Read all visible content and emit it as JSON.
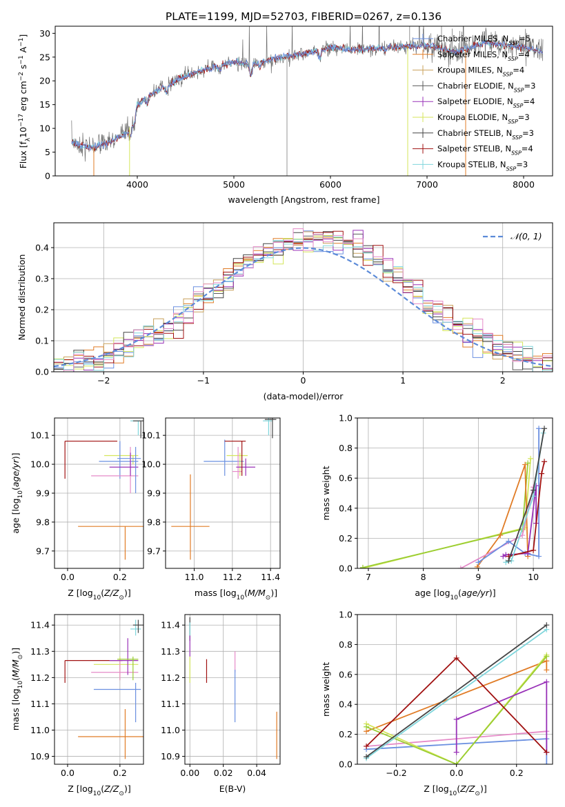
{
  "title": "PLATE=1199, MJD=52703, FIBERID=0267, z=0.136",
  "colors": {
    "chabrier_miles": "#6a8fe0",
    "salpeter_miles": "#e07b25",
    "kroupa_miles": "#c8a05a",
    "chabrier_elodie": "#5a5a5a",
    "salpeter_elodie": "#9932b8",
    "kroupa_elodie": "#d4e65a",
    "chabrier_stelib": "#444444",
    "salpeter_stelib": "#a01010",
    "kroupa_stelib": "#7fd6dc",
    "pink": "#e58ac8",
    "green": "#9acd32"
  },
  "chart_data": [
    {
      "id": "spectrum",
      "type": "line",
      "xlabel": "wavelength [Angstrom, rest frame]",
      "ylabel": "Flux [f",
      "xlim": [
        3150,
        8300
      ],
      "ylim": [
        0,
        31.5
      ],
      "xticks": [
        4000,
        5000,
        6000,
        7000,
        8000
      ],
      "yticks": [
        0,
        5,
        10,
        15,
        20,
        25,
        30
      ],
      "legend_position": "right",
      "legend": [
        {
          "name": "Chabrier MILES, N",
          "sub": "SSP",
          "val": "=5",
          "color": "#6a8fe0"
        },
        {
          "name": "Salpeter MILES, N",
          "sub": "SSP",
          "val": "=4",
          "color": "#e07b25"
        },
        {
          "name": "Kroupa MILES, N",
          "sub": "SSP",
          "val": "=4",
          "color": "#c8a05a"
        },
        {
          "name": "Chabrier ELODIE, N",
          "sub": "SSP",
          "val": "=3",
          "color": "#5a5a5a"
        },
        {
          "name": "Salpeter ELODIE, N",
          "sub": "SSP",
          "val": "=4",
          "color": "#9932b8"
        },
        {
          "name": "Kroupa ELODIE, N",
          "sub": "SSP",
          "val": "=3",
          "color": "#d4e65a"
        },
        {
          "name": "Chabrier STELIB, N",
          "sub": "SSP",
          "val": "=3",
          "color": "#444444"
        },
        {
          "name": "Salpeter STELIB, N",
          "sub": "SSP",
          "val": "=4",
          "color": "#a01010"
        },
        {
          "name": "Kroupa STELIB, N",
          "sub": "SSP",
          "val": "=3",
          "color": "#7fd6dc"
        }
      ],
      "continuum_x": [
        3320,
        3500,
        3700,
        3900,
        4000,
        4200,
        4500,
        4800,
        5000,
        5200,
        5500,
        5800,
        6000,
        6300,
        6600,
        7000,
        7300,
        7600,
        8000,
        8200
      ],
      "continuum_y": [
        7,
        6,
        7,
        9,
        15,
        18,
        21,
        23,
        24,
        23.5,
        25,
        26,
        27,
        26.5,
        27,
        27.5,
        26,
        28,
        27,
        26
      ]
    },
    {
      "id": "residuals",
      "type": "histogram",
      "xlabel": "(data-model)/error",
      "ylabel": "Normed distribution",
      "xlim": [
        -2.5,
        2.5
      ],
      "ylim": [
        0,
        0.48
      ],
      "xticks": [
        -2,
        -1,
        0,
        1,
        2
      ],
      "yticks": [
        0.0,
        0.1,
        0.2,
        0.3,
        0.4
      ],
      "grid": true,
      "legend_position": "top-right",
      "legend": [
        {
          "name": "𝒩(0, 1)",
          "color": "#5b8ad8",
          "style": "dashed"
        }
      ]
    },
    {
      "id": "age_vs_Z",
      "type": "errorbar",
      "xlabel": "Z [log",
      "ylabel": "age  [log",
      "xlim": [
        -0.05,
        0.29
      ],
      "ylim": [
        9.64,
        10.16
      ],
      "xticks": [
        0.0,
        0.2
      ],
      "yticks": [
        9.7,
        9.8,
        9.9,
        10.0,
        10.1
      ],
      "grid": true
    },
    {
      "id": "age_vs_mass",
      "type": "errorbar",
      "xlabel": "mass [log",
      "ylabel": "",
      "xlim": [
        10.85,
        11.45
      ],
      "ylim": [
        9.64,
        10.16
      ],
      "xticks": [
        11.0,
        11.2,
        11.4
      ],
      "yticks": [
        9.7,
        9.8,
        9.9,
        10.0,
        10.1
      ],
      "grid": true
    },
    {
      "id": "massweight_vs_age",
      "type": "line",
      "xlabel": "age  [log",
      "ylabel": "mass weight",
      "xlim": [
        6.8,
        10.35
      ],
      "ylim": [
        0,
        1.0
      ],
      "xticks": [
        7,
        8,
        9,
        10
      ],
      "yticks": [
        0.0,
        0.2,
        0.4,
        0.6,
        0.8,
        1.0
      ],
      "grid": true
    },
    {
      "id": "mass_vs_Z",
      "type": "errorbar",
      "xlabel": "Z [log",
      "ylabel": "mass [log",
      "xlim": [
        -0.05,
        0.29
      ],
      "ylim": [
        10.87,
        11.44
      ],
      "xticks": [
        0.0,
        0.2
      ],
      "yticks": [
        10.9,
        11.0,
        11.1,
        11.2,
        11.3,
        11.4
      ],
      "grid": true
    },
    {
      "id": "mass_vs_ebv",
      "type": "errorbar",
      "xlabel": "E(B-V)",
      "ylabel": "",
      "xlim": [
        -0.003,
        0.054
      ],
      "ylim": [
        10.87,
        11.44
      ],
      "xticks": [
        0.0,
        0.02,
        0.04
      ],
      "yticks": [
        10.9,
        11.0,
        11.1,
        11.2,
        11.3,
        11.4
      ],
      "grid": true
    },
    {
      "id": "massweight_vs_Z",
      "type": "line",
      "xlabel": "Z [log",
      "ylabel": "mass weight",
      "xlim": [
        -0.33,
        0.32
      ],
      "ylim": [
        0,
        1.0
      ],
      "xticks": [
        -0.2,
        0.0,
        0.2
      ],
      "yticks": [
        0.0,
        0.2,
        0.4,
        0.6,
        0.8,
        1.0
      ],
      "grid": true
    }
  ]
}
